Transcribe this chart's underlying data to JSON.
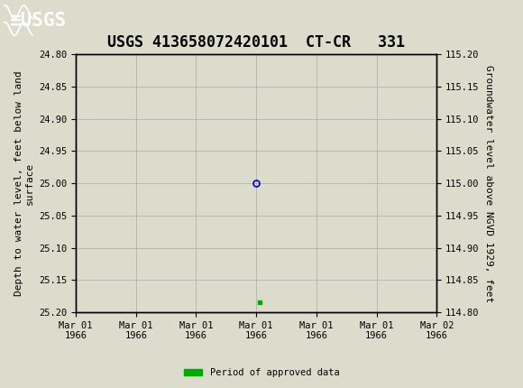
{
  "title": "USGS 413658072420101  CT-CR   331",
  "ylabel_left": "Depth to water level, feet below land\nsurface",
  "ylabel_right": "Groundwater level above NGVD 1929, feet",
  "ylim_left": [
    24.8,
    25.2
  ],
  "ylim_right": [
    114.8,
    115.2
  ],
  "yticks_left": [
    24.8,
    24.85,
    24.9,
    24.95,
    25.0,
    25.05,
    25.1,
    25.15,
    25.2
  ],
  "yticks_right": [
    114.8,
    114.85,
    114.9,
    114.95,
    115.0,
    115.05,
    115.1,
    115.15,
    115.2
  ],
  "xlim": [
    0,
    6
  ],
  "xtick_labels": [
    "Mar 01\n1966",
    "Mar 01\n1966",
    "Mar 01\n1966",
    "Mar 01\n1966",
    "Mar 01\n1966",
    "Mar 01\n1966",
    "Mar 02\n1966"
  ],
  "xtick_positions": [
    0,
    1,
    2,
    3,
    4,
    5,
    6
  ],
  "data_point_x": 3.0,
  "data_point_y": 25.0,
  "green_square_x": 3.05,
  "green_square_y": 25.185,
  "header_color": "#1a6b3c",
  "bg_color": "#dcdccc",
  "plot_bg_color": "#dcdccc",
  "grid_color": "#aaaaaa",
  "data_point_color": "#0000cc",
  "green_color": "#00aa00",
  "font_family": "monospace",
  "legend_label": "Period of approved data",
  "title_fontsize": 12,
  "axis_label_fontsize": 8,
  "tick_fontsize": 7.5
}
